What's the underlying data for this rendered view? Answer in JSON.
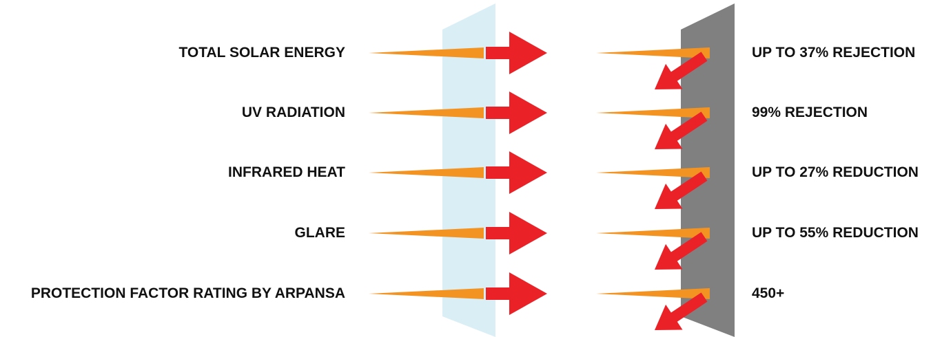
{
  "colors": {
    "glass": "#daeef6",
    "film": "#808080",
    "ray": "#f39322",
    "arrow": "#ea2127"
  },
  "rows": [
    {
      "property": "TOTAL SOLAR ENERGY",
      "result": "UP TO 37% REJECTION"
    },
    {
      "property": "UV RADIATION",
      "result": "99% REJECTION"
    },
    {
      "property": "INFRARED HEAT",
      "result": "UP TO 27% REDUCTION"
    },
    {
      "property": "GLARE",
      "result": "UP TO 55% REDUCTION"
    },
    {
      "property": "PROTECTION FACTOR RATING BY ARPANSA",
      "result": "450+"
    }
  ]
}
